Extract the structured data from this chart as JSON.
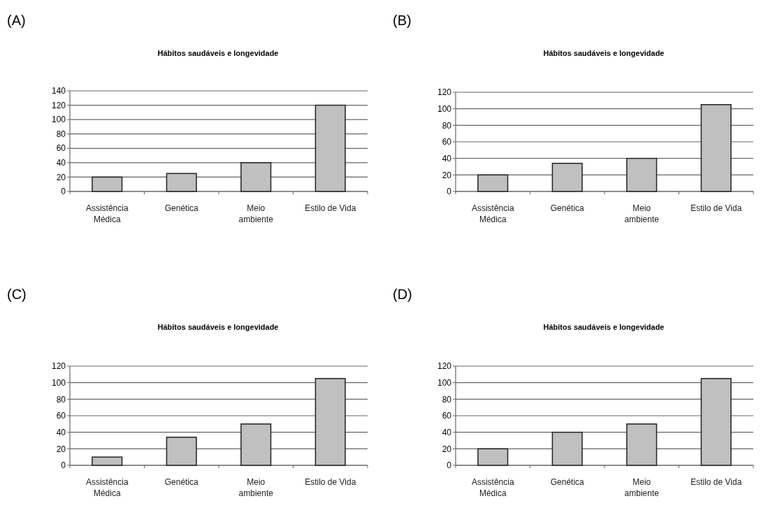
{
  "chart_data": [
    {
      "type": "bar",
      "title": "Hábitos saudáveis e longevidade",
      "annotations": [
        "(A)"
      ],
      "categories": [
        "Assistência Médica",
        "Genética",
        "Meio ambiente",
        "Estilo de Vida"
      ],
      "values": [
        20,
        25,
        40,
        120
      ],
      "color": "#c0c0c0",
      "ylim": [
        0,
        140
      ],
      "yticks": [
        0,
        20,
        40,
        60,
        80,
        100,
        120,
        140
      ],
      "grid": "y"
    },
    {
      "type": "bar",
      "title": "Hábitos saudáveis e longevidade",
      "annotations": [
        "(B)"
      ],
      "categories": [
        "Assistência Médica",
        "Genética",
        "Meio ambiente",
        "Estilo de Vida"
      ],
      "values": [
        20,
        34,
        40,
        105
      ],
      "color": "#c0c0c0",
      "ylim": [
        0,
        120
      ],
      "yticks": [
        0,
        20,
        40,
        60,
        80,
        100,
        120
      ],
      "grid": "y"
    },
    {
      "type": "bar",
      "title": "Hábitos saudáveis e longevidade",
      "annotations": [
        "(C)"
      ],
      "categories": [
        "Assistência Médica",
        "Genética",
        "Meio ambiente",
        "Estilo de Vida"
      ],
      "values": [
        10,
        34,
        50,
        105
      ],
      "color": "#c0c0c0",
      "ylim": [
        0,
        120
      ],
      "yticks": [
        0,
        20,
        40,
        60,
        80,
        100,
        120
      ],
      "grid": "y"
    },
    {
      "type": "bar",
      "title": "Hábitos saudáveis e longevidade",
      "annotations": [
        "(D)"
      ],
      "categories": [
        "Assistência Médica",
        "Genética",
        "Meio ambiente",
        "Estilo de Vida"
      ],
      "values": [
        20,
        40,
        50,
        105
      ],
      "color": "#c0c0c0",
      "ylim": [
        0,
        120
      ],
      "yticks": [
        0,
        20,
        40,
        60,
        80,
        100,
        120
      ],
      "grid": "y"
    }
  ]
}
